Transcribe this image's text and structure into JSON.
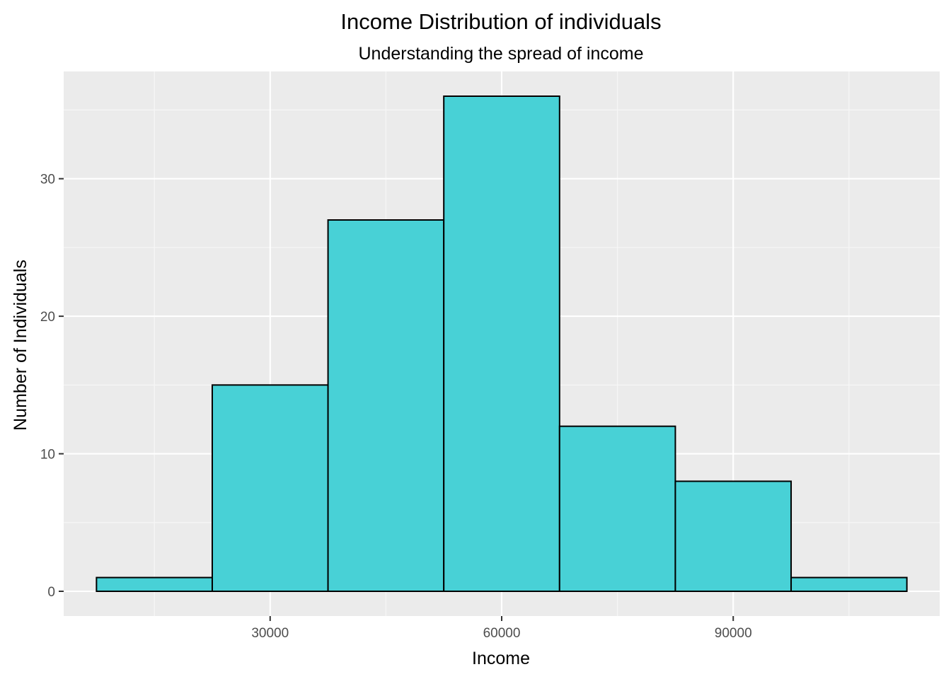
{
  "chart_data": {
    "type": "bar",
    "title": "Income Distribution of individuals",
    "subtitle": "Understanding the spread of income",
    "xlabel": "Income",
    "ylabel": "Number of Individuals",
    "xlim": [
      3250,
      116750
    ],
    "ylim": [
      -1.8,
      37.8
    ],
    "x_ticks": [
      30000,
      60000,
      90000
    ],
    "x_tick_labels": [
      "30000",
      "60000",
      "90000"
    ],
    "x_minor_ticks": [
      15000,
      45000,
      75000,
      105000
    ],
    "y_ticks": [
      0,
      10,
      20,
      30
    ],
    "y_tick_labels": [
      "0",
      "10",
      "20",
      "30"
    ],
    "y_minor_ticks": [
      5,
      15,
      25,
      35
    ],
    "grid": true,
    "bins": [
      {
        "x0": 7500,
        "x1": 22500,
        "count": 1
      },
      {
        "x0": 22500,
        "x1": 37500,
        "count": 15
      },
      {
        "x0": 37500,
        "x1": 52500,
        "count": 27
      },
      {
        "x0": 52500,
        "x1": 67500,
        "count": 36
      },
      {
        "x0": 67500,
        "x1": 82500,
        "count": 12
      },
      {
        "x0": 82500,
        "x1": 97500,
        "count": 8
      },
      {
        "x0": 97500,
        "x1": 112500,
        "count": 1
      }
    ],
    "colors": {
      "panel": "#ebebeb",
      "grid_major": "#ffffff",
      "grid_minor": "#f7f7f7",
      "bar_fill": "#48d1d6",
      "bar_stroke": "#000000",
      "tick": "#333333"
    }
  }
}
